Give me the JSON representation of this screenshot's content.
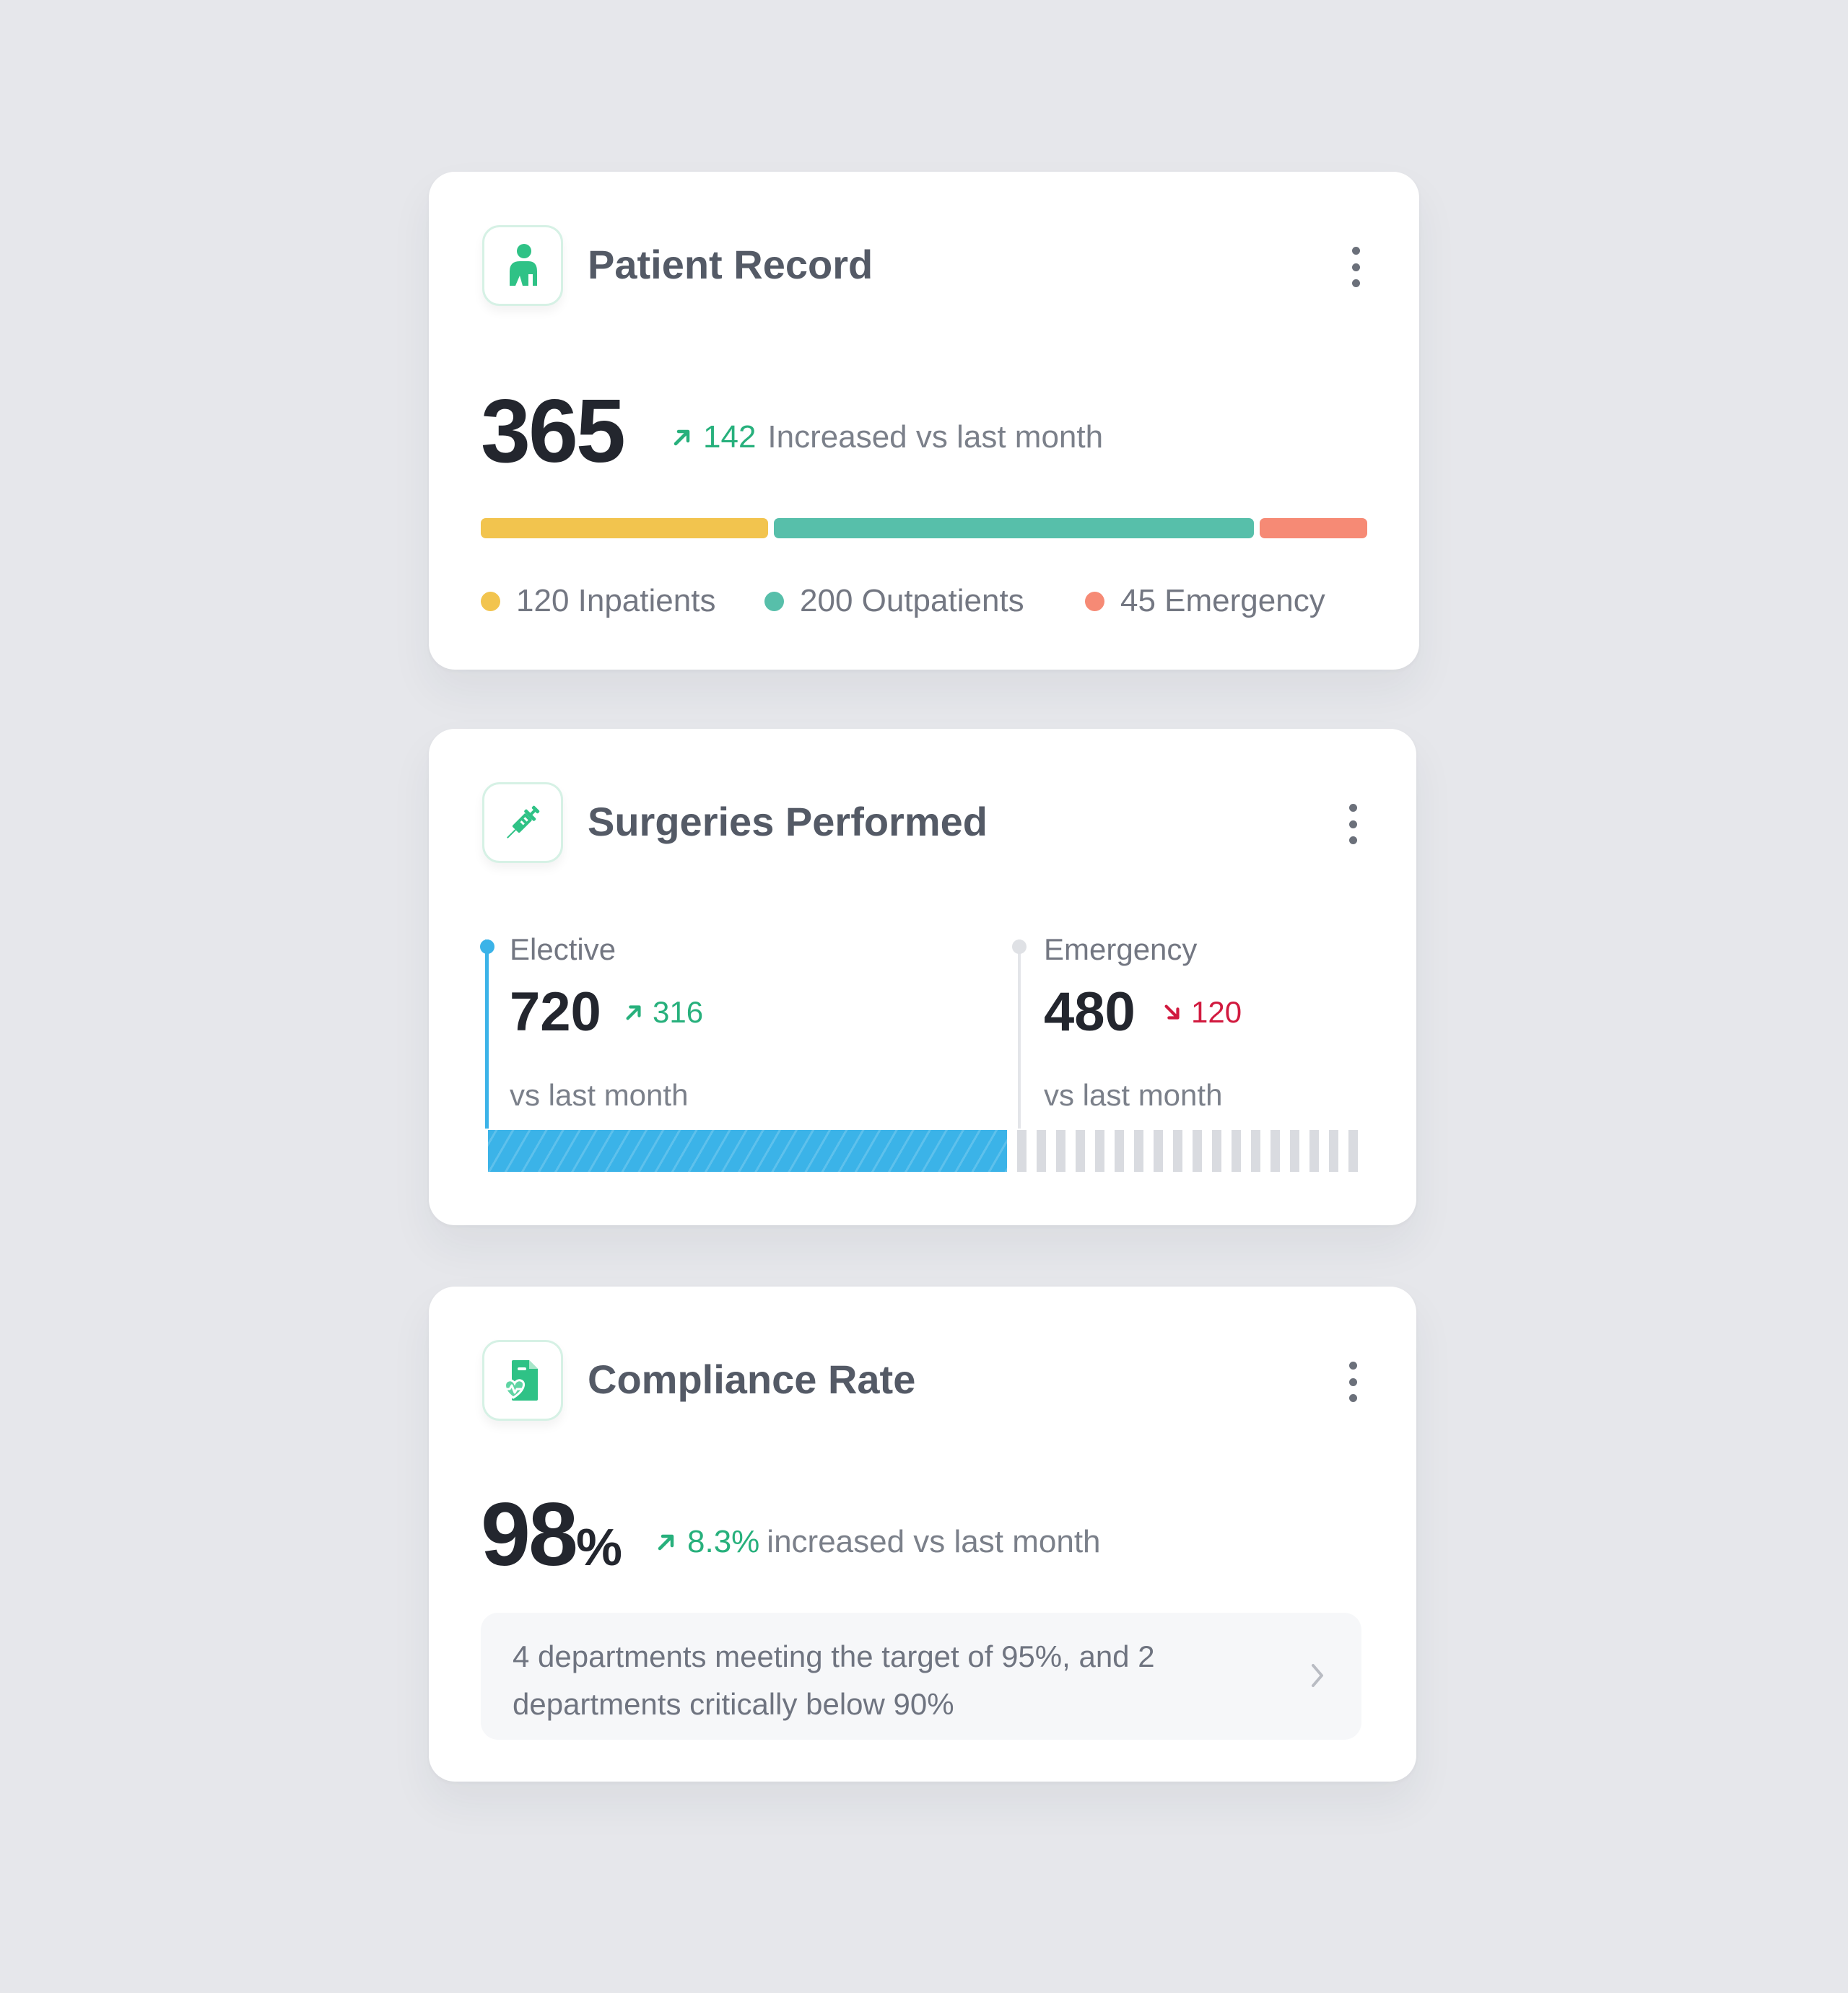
{
  "patient_record": {
    "title": "Patient Record",
    "icon": "patient-icon",
    "total": "365",
    "change": "142",
    "change_text": "Increased vs last month",
    "breakdown": [
      {
        "value": 120,
        "label": "120 Inpatients",
        "color": "#f2c44e"
      },
      {
        "value": 200,
        "label": "200 Outpatients",
        "color": "#57bfaa"
      },
      {
        "value": 45,
        "label": "45 Emergency",
        "color": "#f68a75"
      }
    ]
  },
  "surgeries": {
    "title": "Surgeries Performed",
    "icon": "syringe-icon",
    "elective": {
      "label": "Elective",
      "value": "720",
      "change": "316",
      "caption": "vs last month",
      "color": "#3bb3e8"
    },
    "emergency": {
      "label": "Emergency",
      "value": "480",
      "change": "120",
      "caption": "vs last month",
      "color": "#d9dbe0"
    }
  },
  "compliance": {
    "title": "Compliance Rate",
    "icon": "heart-document-icon",
    "value": "98",
    "unit": "%",
    "change": "8.3%",
    "change_text": "increased vs last month",
    "note": "4 departments meeting the target of 95%,  and 2 departments critically below 90%"
  },
  "colors": {
    "accent_green": "#27b07c",
    "down_red": "#d11a3f"
  }
}
